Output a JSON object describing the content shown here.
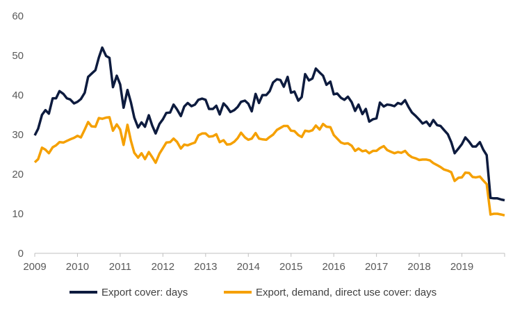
{
  "chart_data": {
    "type": "line",
    "title": "",
    "xlabel": "",
    "ylabel": "",
    "ylim": [
      0,
      60
    ],
    "xlim": [
      2009,
      2020
    ],
    "grid": false,
    "legend_position": "bottom",
    "y_ticks": [
      "0",
      "10",
      "20",
      "30",
      "40",
      "50",
      "60"
    ],
    "x_ticks": [
      "2009",
      "2010",
      "2011",
      "2012",
      "2013",
      "2014",
      "2015",
      "2016",
      "2017",
      "2018",
      "2019"
    ],
    "series": [
      {
        "name": "Export cover: days",
        "color": "#0d1b3e",
        "points": [
          [
            2009.0,
            29.8
          ],
          [
            2009.08,
            31.5
          ],
          [
            2009.17,
            35.0
          ],
          [
            2009.25,
            36.2
          ],
          [
            2009.33,
            35.3
          ],
          [
            2009.42,
            39.2
          ],
          [
            2009.5,
            39.2
          ],
          [
            2009.58,
            41.0
          ],
          [
            2009.67,
            40.3
          ],
          [
            2009.75,
            39.2
          ],
          [
            2009.83,
            38.9
          ],
          [
            2009.92,
            37.9
          ],
          [
            2010.0,
            38.3
          ],
          [
            2010.08,
            39.0
          ],
          [
            2010.17,
            40.6
          ],
          [
            2010.25,
            44.6
          ],
          [
            2010.33,
            45.4
          ],
          [
            2010.42,
            46.3
          ],
          [
            2010.5,
            49.5
          ],
          [
            2010.58,
            52.0
          ],
          [
            2010.67,
            49.9
          ],
          [
            2010.75,
            49.4
          ],
          [
            2010.83,
            42.0
          ],
          [
            2010.92,
            44.9
          ],
          [
            2011.0,
            42.7
          ],
          [
            2011.08,
            36.8
          ],
          [
            2011.17,
            41.3
          ],
          [
            2011.25,
            38.2
          ],
          [
            2011.33,
            34.3
          ],
          [
            2011.42,
            31.8
          ],
          [
            2011.5,
            33.1
          ],
          [
            2011.58,
            32.0
          ],
          [
            2011.67,
            34.9
          ],
          [
            2011.75,
            32.3
          ],
          [
            2011.83,
            30.3
          ],
          [
            2011.92,
            32.7
          ],
          [
            2012.0,
            33.9
          ],
          [
            2012.08,
            35.5
          ],
          [
            2012.17,
            35.6
          ],
          [
            2012.25,
            37.6
          ],
          [
            2012.33,
            36.4
          ],
          [
            2012.42,
            34.7
          ],
          [
            2012.5,
            37.1
          ],
          [
            2012.58,
            38.0
          ],
          [
            2012.67,
            37.2
          ],
          [
            2012.75,
            37.6
          ],
          [
            2012.83,
            38.8
          ],
          [
            2012.92,
            39.1
          ],
          [
            2013.0,
            38.8
          ],
          [
            2013.08,
            36.5
          ],
          [
            2013.17,
            36.5
          ],
          [
            2013.25,
            37.3
          ],
          [
            2013.33,
            35.1
          ],
          [
            2013.42,
            37.9
          ],
          [
            2013.5,
            37.0
          ],
          [
            2013.58,
            35.7
          ],
          [
            2013.67,
            36.2
          ],
          [
            2013.75,
            37.0
          ],
          [
            2013.83,
            38.3
          ],
          [
            2013.92,
            38.6
          ],
          [
            2014.0,
            37.8
          ],
          [
            2014.08,
            35.9
          ],
          [
            2014.17,
            40.3
          ],
          [
            2014.25,
            38.0
          ],
          [
            2014.33,
            40.0
          ],
          [
            2014.42,
            40.0
          ],
          [
            2014.5,
            41.0
          ],
          [
            2014.58,
            43.2
          ],
          [
            2014.67,
            44.0
          ],
          [
            2014.75,
            43.8
          ],
          [
            2014.83,
            42.1
          ],
          [
            2014.92,
            44.6
          ],
          [
            2015.0,
            40.6
          ],
          [
            2015.08,
            40.9
          ],
          [
            2015.17,
            38.6
          ],
          [
            2015.25,
            39.5
          ],
          [
            2015.33,
            45.3
          ],
          [
            2015.42,
            43.7
          ],
          [
            2015.5,
            44.2
          ],
          [
            2015.58,
            46.7
          ],
          [
            2015.67,
            45.7
          ],
          [
            2015.75,
            44.9
          ],
          [
            2015.83,
            42.6
          ],
          [
            2015.92,
            43.4
          ],
          [
            2016.0,
            40.2
          ],
          [
            2016.08,
            40.4
          ],
          [
            2016.17,
            39.3
          ],
          [
            2016.25,
            38.8
          ],
          [
            2016.33,
            39.6
          ],
          [
            2016.42,
            38.2
          ],
          [
            2016.5,
            36.0
          ],
          [
            2016.58,
            37.6
          ],
          [
            2016.67,
            35.2
          ],
          [
            2016.75,
            36.5
          ],
          [
            2016.83,
            33.3
          ],
          [
            2016.92,
            33.9
          ],
          [
            2017.0,
            34.1
          ],
          [
            2017.08,
            38.1
          ],
          [
            2017.17,
            37.1
          ],
          [
            2017.25,
            37.6
          ],
          [
            2017.33,
            37.5
          ],
          [
            2017.42,
            37.2
          ],
          [
            2017.5,
            38.0
          ],
          [
            2017.58,
            37.7
          ],
          [
            2017.67,
            38.7
          ],
          [
            2017.75,
            37.0
          ],
          [
            2017.83,
            35.6
          ],
          [
            2017.92,
            34.7
          ],
          [
            2018.0,
            33.8
          ],
          [
            2018.08,
            32.8
          ],
          [
            2018.17,
            33.3
          ],
          [
            2018.25,
            32.2
          ],
          [
            2018.33,
            33.7
          ],
          [
            2018.42,
            32.4
          ],
          [
            2018.5,
            32.2
          ],
          [
            2018.58,
            31.2
          ],
          [
            2018.67,
            30.1
          ],
          [
            2018.75,
            28.1
          ],
          [
            2018.83,
            25.3
          ],
          [
            2018.92,
            26.5
          ],
          [
            2019.0,
            27.6
          ],
          [
            2019.08,
            29.3
          ],
          [
            2019.17,
            28.2
          ],
          [
            2019.25,
            27.0
          ],
          [
            2019.33,
            27.0
          ],
          [
            2019.42,
            28.1
          ],
          [
            2019.5,
            26.2
          ],
          [
            2019.58,
            24.8
          ],
          [
            2019.67,
            14.0
          ],
          [
            2019.75,
            13.9
          ],
          [
            2019.83,
            13.9
          ],
          [
            2019.92,
            13.6
          ],
          [
            2020.0,
            13.4
          ]
        ]
      },
      {
        "name": "Export, demand, direct use cover: days",
        "color": "#f5a000",
        "points": [
          [
            2009.0,
            23.0
          ],
          [
            2009.08,
            23.8
          ],
          [
            2009.17,
            26.7
          ],
          [
            2009.25,
            26.2
          ],
          [
            2009.33,
            25.3
          ],
          [
            2009.42,
            26.8
          ],
          [
            2009.5,
            27.3
          ],
          [
            2009.58,
            28.1
          ],
          [
            2009.67,
            28.0
          ],
          [
            2009.75,
            28.4
          ],
          [
            2009.83,
            28.8
          ],
          [
            2009.92,
            29.2
          ],
          [
            2010.0,
            29.7
          ],
          [
            2010.08,
            29.3
          ],
          [
            2010.17,
            31.3
          ],
          [
            2010.25,
            33.2
          ],
          [
            2010.33,
            32.1
          ],
          [
            2010.42,
            32.0
          ],
          [
            2010.5,
            34.2
          ],
          [
            2010.58,
            34.0
          ],
          [
            2010.67,
            34.3
          ],
          [
            2010.75,
            34.4
          ],
          [
            2010.83,
            31.0
          ],
          [
            2010.92,
            32.6
          ],
          [
            2011.0,
            31.3
          ],
          [
            2011.08,
            27.4
          ],
          [
            2011.17,
            32.5
          ],
          [
            2011.25,
            28.5
          ],
          [
            2011.33,
            25.4
          ],
          [
            2011.42,
            24.2
          ],
          [
            2011.5,
            25.3
          ],
          [
            2011.58,
            23.8
          ],
          [
            2011.67,
            25.6
          ],
          [
            2011.75,
            24.3
          ],
          [
            2011.83,
            22.9
          ],
          [
            2011.92,
            25.2
          ],
          [
            2012.0,
            26.6
          ],
          [
            2012.08,
            28.0
          ],
          [
            2012.17,
            28.1
          ],
          [
            2012.25,
            29.0
          ],
          [
            2012.33,
            28.2
          ],
          [
            2012.42,
            26.5
          ],
          [
            2012.5,
            27.5
          ],
          [
            2012.58,
            27.3
          ],
          [
            2012.67,
            27.7
          ],
          [
            2012.75,
            28.0
          ],
          [
            2012.83,
            29.8
          ],
          [
            2012.92,
            30.3
          ],
          [
            2013.0,
            30.3
          ],
          [
            2013.08,
            29.5
          ],
          [
            2013.17,
            29.6
          ],
          [
            2013.25,
            30.1
          ],
          [
            2013.33,
            28.1
          ],
          [
            2013.42,
            28.6
          ],
          [
            2013.5,
            27.5
          ],
          [
            2013.58,
            27.6
          ],
          [
            2013.67,
            28.2
          ],
          [
            2013.75,
            29.1
          ],
          [
            2013.83,
            30.5
          ],
          [
            2013.92,
            29.3
          ],
          [
            2014.0,
            28.7
          ],
          [
            2014.08,
            29.0
          ],
          [
            2014.17,
            30.4
          ],
          [
            2014.25,
            29.0
          ],
          [
            2014.33,
            28.8
          ],
          [
            2014.42,
            28.7
          ],
          [
            2014.5,
            29.4
          ],
          [
            2014.58,
            30.0
          ],
          [
            2014.67,
            31.2
          ],
          [
            2014.75,
            31.7
          ],
          [
            2014.83,
            32.2
          ],
          [
            2014.92,
            32.2
          ],
          [
            2015.0,
            31.0
          ],
          [
            2015.08,
            30.9
          ],
          [
            2015.17,
            29.9
          ],
          [
            2015.25,
            29.4
          ],
          [
            2015.33,
            31.0
          ],
          [
            2015.42,
            30.8
          ],
          [
            2015.5,
            31.1
          ],
          [
            2015.58,
            32.3
          ],
          [
            2015.67,
            31.3
          ],
          [
            2015.75,
            32.7
          ],
          [
            2015.83,
            32.0
          ],
          [
            2015.92,
            31.9
          ],
          [
            2016.0,
            29.9
          ],
          [
            2016.08,
            29.0
          ],
          [
            2016.17,
            28.0
          ],
          [
            2016.25,
            27.7
          ],
          [
            2016.33,
            27.8
          ],
          [
            2016.42,
            27.2
          ],
          [
            2016.5,
            25.9
          ],
          [
            2016.58,
            26.5
          ],
          [
            2016.67,
            25.8
          ],
          [
            2016.75,
            26.0
          ],
          [
            2016.83,
            25.3
          ],
          [
            2016.92,
            25.9
          ],
          [
            2017.0,
            25.9
          ],
          [
            2017.08,
            26.6
          ],
          [
            2017.17,
            27.1
          ],
          [
            2017.25,
            26.1
          ],
          [
            2017.33,
            25.7
          ],
          [
            2017.42,
            25.3
          ],
          [
            2017.5,
            25.6
          ],
          [
            2017.58,
            25.4
          ],
          [
            2017.67,
            25.9
          ],
          [
            2017.75,
            24.9
          ],
          [
            2017.83,
            24.3
          ],
          [
            2017.92,
            24.0
          ],
          [
            2018.0,
            23.6
          ],
          [
            2018.08,
            23.7
          ],
          [
            2018.17,
            23.7
          ],
          [
            2018.25,
            23.5
          ],
          [
            2018.33,
            22.8
          ],
          [
            2018.42,
            22.3
          ],
          [
            2018.5,
            21.8
          ],
          [
            2018.58,
            21.2
          ],
          [
            2018.67,
            20.9
          ],
          [
            2018.75,
            20.5
          ],
          [
            2018.83,
            18.3
          ],
          [
            2018.92,
            19.1
          ],
          [
            2019.0,
            19.2
          ],
          [
            2019.08,
            20.4
          ],
          [
            2019.17,
            20.3
          ],
          [
            2019.25,
            19.3
          ],
          [
            2019.33,
            19.2
          ],
          [
            2019.42,
            19.4
          ],
          [
            2019.5,
            18.4
          ],
          [
            2019.58,
            17.5
          ],
          [
            2019.67,
            9.8
          ],
          [
            2019.75,
            10.0
          ],
          [
            2019.83,
            10.0
          ],
          [
            2019.92,
            9.8
          ],
          [
            2020.0,
            9.6
          ]
        ]
      }
    ]
  }
}
